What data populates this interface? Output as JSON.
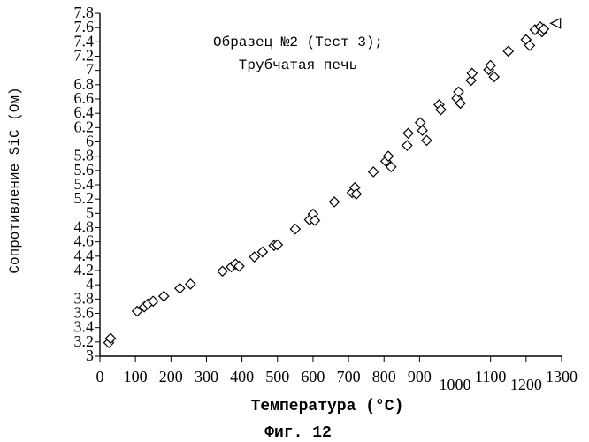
{
  "figure_caption": "Фиг. 12",
  "chart_data": {
    "type": "scatter",
    "title": "Образец №2 (Тест 3);",
    "subtitle": "Трубчатая печь",
    "xlabel": "Температура (°C)",
    "ylabel": "Сопротивление SiC (Ом)",
    "xlim": [
      0,
      1300
    ],
    "ylim": [
      3,
      7.8
    ],
    "x_ticks": [
      0,
      100,
      200,
      300,
      400,
      500,
      600,
      700,
      800,
      900,
      1000,
      1100,
      1200,
      1300
    ],
    "y_ticks": [
      3,
      3.2,
      3.4,
      3.6,
      3.8,
      4,
      4.2,
      4.4,
      4.6,
      4.8,
      5,
      5.2,
      5.4,
      5.6,
      5.8,
      6,
      6.2,
      6.4,
      6.6,
      6.8,
      7,
      7.2,
      7.4,
      7.6,
      7.8
    ],
    "marker": "diamond",
    "series": [
      {
        "points": [
          [
            25,
            3.19
          ],
          [
            30,
            3.25
          ],
          [
            105,
            3.63
          ],
          [
            125,
            3.69
          ],
          [
            135,
            3.73
          ],
          [
            150,
            3.77
          ],
          [
            180,
            3.84
          ],
          [
            225,
            3.95
          ],
          [
            255,
            4.01
          ],
          [
            345,
            4.19
          ],
          [
            370,
            4.25
          ],
          [
            382,
            4.29
          ],
          [
            392,
            4.26
          ],
          [
            435,
            4.39
          ],
          [
            458,
            4.46
          ],
          [
            490,
            4.55
          ],
          [
            500,
            4.56
          ],
          [
            550,
            4.78
          ],
          [
            590,
            4.91
          ],
          [
            600,
            4.99
          ],
          [
            605,
            4.9
          ],
          [
            660,
            5.16
          ],
          [
            710,
            5.29
          ],
          [
            718,
            5.36
          ],
          [
            722,
            5.27
          ],
          [
            770,
            5.58
          ],
          [
            805,
            5.73
          ],
          [
            812,
            5.8
          ],
          [
            820,
            5.65
          ],
          [
            865,
            5.95
          ],
          [
            868,
            6.12
          ],
          [
            902,
            6.27
          ],
          [
            908,
            6.16
          ],
          [
            920,
            6.02
          ],
          [
            955,
            6.52
          ],
          [
            960,
            6.45
          ],
          [
            1005,
            6.61
          ],
          [
            1010,
            6.7
          ],
          [
            1015,
            6.54
          ],
          [
            1045,
            6.86
          ],
          [
            1048,
            6.96
          ],
          [
            1095,
            7.01
          ],
          [
            1100,
            7.07
          ],
          [
            1110,
            6.91
          ],
          [
            1150,
            7.27
          ],
          [
            1200,
            7.43
          ],
          [
            1210,
            7.35
          ],
          [
            1225,
            7.57
          ],
          [
            1240,
            7.61
          ],
          [
            1245,
            7.54
          ],
          [
            1250,
            7.58
          ]
        ]
      },
      {
        "marker": "triangle-left",
        "points": [
          [
            1283,
            7.66
          ]
        ]
      }
    ]
  }
}
